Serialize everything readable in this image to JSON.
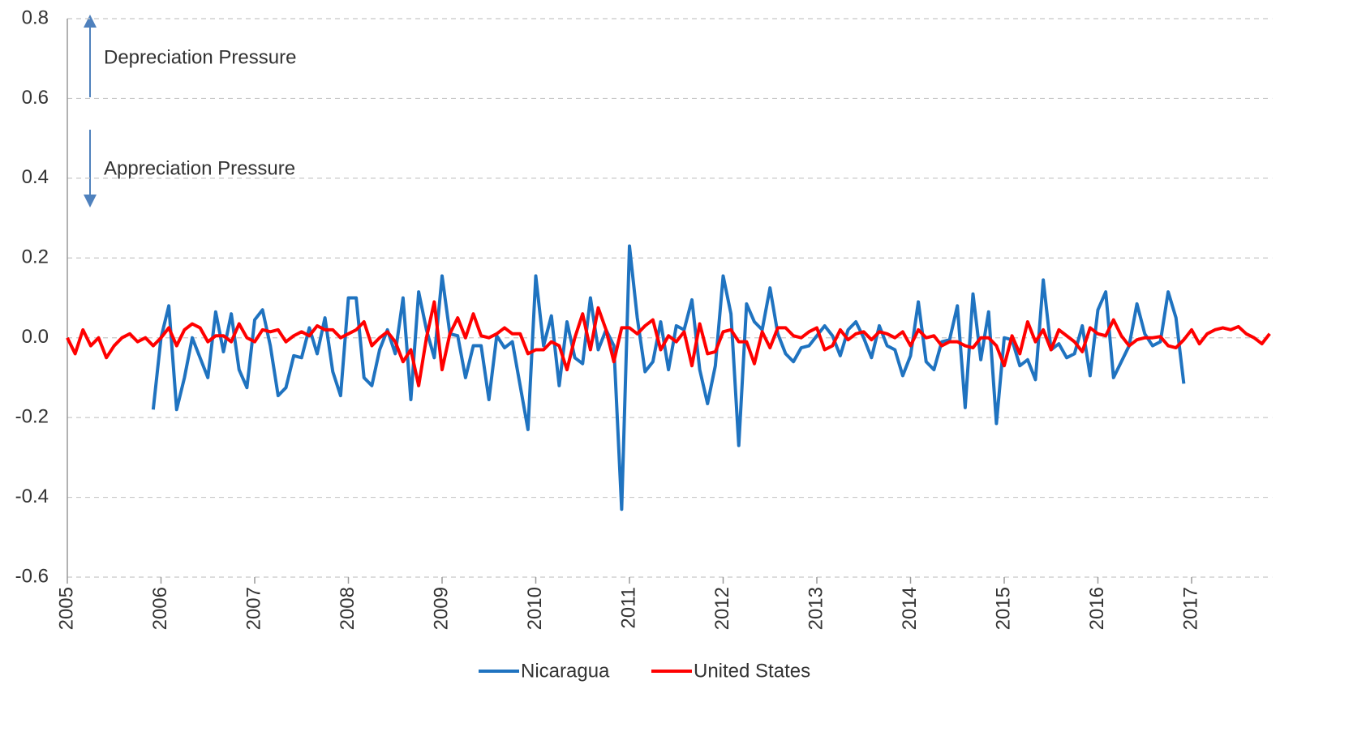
{
  "chart_data": {
    "type": "line",
    "annotations": [
      "Depreciation Pressure",
      "Appreciation Pressure"
    ],
    "categories": [
      "2005",
      null,
      null,
      null,
      null,
      null,
      null,
      null,
      null,
      null,
      null,
      null,
      "2006",
      null,
      null,
      null,
      null,
      null,
      null,
      null,
      null,
      null,
      null,
      null,
      "2007",
      null,
      null,
      null,
      null,
      null,
      null,
      null,
      null,
      null,
      null,
      null,
      "2008",
      null,
      null,
      null,
      null,
      null,
      null,
      null,
      null,
      null,
      null,
      null,
      "2009",
      null,
      null,
      null,
      null,
      null,
      null,
      null,
      null,
      null,
      null,
      null,
      "2010",
      null,
      null,
      null,
      null,
      null,
      null,
      null,
      null,
      null,
      null,
      null,
      "2011",
      null,
      null,
      null,
      null,
      null,
      null,
      null,
      null,
      null,
      null,
      null,
      "2012",
      null,
      null,
      null,
      null,
      null,
      null,
      null,
      null,
      null,
      null,
      null,
      "2013",
      null,
      null,
      null,
      null,
      null,
      null,
      null,
      null,
      null,
      null,
      null,
      "2014",
      null,
      null,
      null,
      null,
      null,
      null,
      null,
      null,
      null,
      null,
      null,
      "2015",
      null,
      null,
      null,
      null,
      null,
      null,
      null,
      null,
      null,
      null,
      null,
      "2016",
      null,
      null,
      null,
      null,
      null,
      null,
      null,
      null,
      null,
      null,
      null,
      "2017",
      null,
      null,
      null,
      null,
      null,
      null,
      null,
      null,
      null,
      null
    ],
    "series": [
      {
        "name": "Nicaragua",
        "color": "#1f73c0",
        "values": [
          null,
          null,
          null,
          null,
          null,
          null,
          null,
          null,
          null,
          null,
          null,
          -0.18,
          0,
          0.08,
          -0.18,
          -0.1,
          0,
          -0.05,
          -0.1,
          0.065,
          -0.035,
          0.06,
          -0.08,
          -0.125,
          0.045,
          0.07,
          -0.02,
          -0.145,
          -0.125,
          -0.045,
          -0.05,
          0.025,
          -0.04,
          0.05,
          -0.085,
          -0.145,
          0.1,
          0.1,
          -0.1,
          -0.12,
          -0.03,
          0.02,
          -0.04,
          0.1,
          -0.155,
          0.115,
          0.02,
          -0.05,
          0.155,
          0.01,
          0.005,
          -0.1,
          -0.02,
          -0.02,
          -0.155,
          0.005,
          -0.025,
          -0.01,
          -0.12,
          -0.23,
          0.155,
          -0.02,
          0.055,
          -0.12,
          0.04,
          -0.05,
          -0.065,
          0.1,
          -0.03,
          0.02,
          -0.02,
          -0.43,
          0.23,
          0.05,
          -0.085,
          -0.06,
          0.04,
          -0.08,
          0.03,
          0.02,
          0.095,
          -0.08,
          -0.165,
          -0.07,
          0.155,
          0.06,
          -0.27,
          0.085,
          0.04,
          0.02,
          0.125,
          0.01,
          -0.04,
          -0.06,
          -0.025,
          -0.02,
          0.005,
          0.03,
          0.005,
          -0.045,
          0.02,
          0.04,
          0,
          -0.05,
          0.03,
          -0.02,
          -0.03,
          -0.095,
          -0.045,
          0.09,
          -0.06,
          -0.08,
          -0.01,
          -0.005,
          0.08,
          -0.175,
          0.11,
          -0.055,
          0.065,
          -0.215,
          0,
          -0.005,
          -0.07,
          -0.055,
          -0.105,
          0.145,
          -0.03,
          -0.015,
          -0.05,
          -0.04,
          0.03,
          -0.095,
          0.07,
          0.115,
          -0.1,
          -0.06,
          -0.02,
          0.085,
          0.01,
          -0.02,
          -0.01,
          0.115,
          0.05,
          -0.115,
          null,
          null,
          null,
          null,
          null,
          null,
          null,
          null,
          null,
          null,
          null
        ]
      },
      {
        "name": "United States",
        "color": "#ff0000",
        "values": [
          0,
          -0.04,
          0.02,
          -0.02,
          0,
          -0.05,
          -0.02,
          0,
          0.01,
          -0.01,
          0,
          -0.02,
          0,
          0.025,
          -0.02,
          0.02,
          0.035,
          0.025,
          -0.01,
          0.005,
          0.005,
          -0.01,
          0.035,
          0,
          -0.01,
          0.02,
          0.015,
          0.02,
          -0.01,
          0.005,
          0.015,
          0.005,
          0.03,
          0.02,
          0.02,
          0,
          0.01,
          0.02,
          0.04,
          -0.02,
          0,
          0.015,
          -0.01,
          -0.06,
          -0.03,
          -0.12,
          0,
          0.09,
          -0.08,
          0.01,
          0.05,
          0,
          0.06,
          0.005,
          0,
          0.01,
          0.025,
          0.01,
          0.01,
          -0.04,
          -0.03,
          -0.03,
          -0.01,
          -0.02,
          -0.08,
          0,
          0.06,
          -0.03,
          0.075,
          0.02,
          -0.06,
          0.025,
          0.025,
          0.01,
          0.03,
          0.045,
          -0.03,
          0.005,
          -0.01,
          0.015,
          -0.07,
          0.035,
          -0.04,
          -0.035,
          0.015,
          0.02,
          -0.01,
          -0.01,
          -0.065,
          0.015,
          -0.025,
          0.025,
          0.025,
          0.005,
          0,
          0.015,
          0.025,
          -0.03,
          -0.02,
          0.02,
          -0.005,
          0.01,
          0.015,
          -0.005,
          0.015,
          0.01,
          0,
          0.015,
          -0.02,
          0.02,
          0,
          0.005,
          -0.02,
          -0.01,
          -0.01,
          -0.02,
          -0.025,
          0,
          0,
          -0.02,
          -0.07,
          0.005,
          -0.04,
          0.04,
          -0.01,
          0.02,
          -0.03,
          0.02,
          0.005,
          -0.01,
          -0.035,
          0.025,
          0.01,
          0.005,
          0.045,
          0.005,
          -0.02,
          -0.005,
          0,
          0,
          0.003,
          -0.02,
          -0.025,
          -0.005,
          0.02,
          -0.015,
          0.01,
          0.02,
          0.025,
          0.02,
          0.028,
          0.01,
          0,
          -0.015,
          0.01
        ]
      }
    ],
    "ylim": [
      -0.6,
      0.8
    ],
    "yticks": [
      -0.6,
      -0.4,
      -0.2,
      {
        "value": 0,
        "label": "0.0"
      },
      0.2,
      0.4,
      0.6,
      0.8
    ],
    "grid": true
  }
}
